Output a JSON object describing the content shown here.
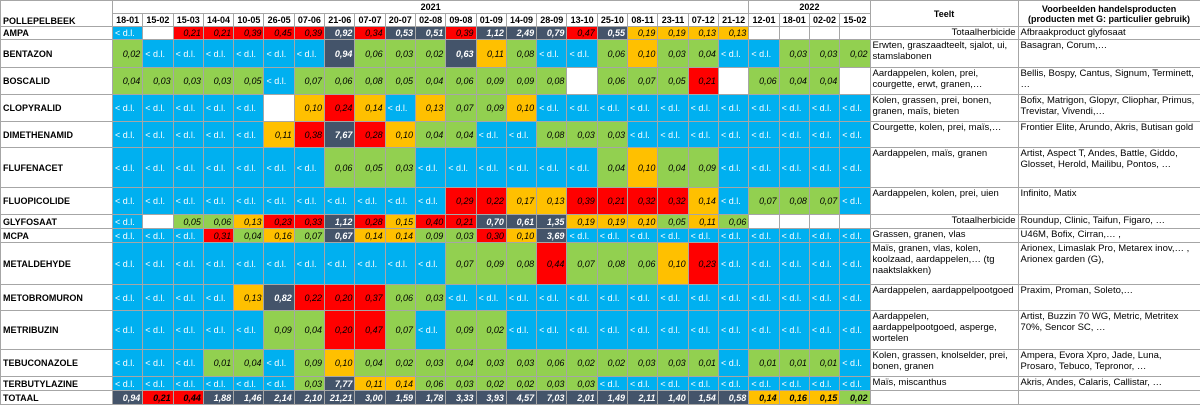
{
  "header": {
    "title": "POLLEPELBEEK",
    "years": [
      "2021",
      "2022"
    ],
    "teelt": "Teelt",
    "products": "Voorbeelden handelsproducten",
    "products_note": "(producten met G: particulier gebruik)"
  },
  "dates": [
    "18-01",
    "15-02",
    "15-03",
    "14-04",
    "10-05",
    "26-05",
    "07-06",
    "21-06",
    "07-07",
    "20-07",
    "02-08",
    "09-08",
    "01-09",
    "14-09",
    "28-09",
    "13-10",
    "25-10",
    "08-11",
    "23-11",
    "07-12",
    "21-12",
    "12-01",
    "18-01",
    "02-02",
    "15-02"
  ],
  "rows": [
    {
      "name": "AMPA",
      "cells": [
        "< d.l.",
        null,
        "0,21",
        "0,21",
        "0,39",
        "0,45",
        "0,39",
        "0,92",
        "0,34",
        "0,53",
        "0,51",
        "0,39",
        "1,12",
        "2,49",
        "0,79",
        "0,47",
        "0,55",
        "0,19",
        "0,19",
        "0,13",
        "0,13",
        null,
        null,
        null,
        null
      ],
      "teelt": "Totaalherbicide",
      "products": "Afbraakproduct glyfosaat"
    },
    {
      "name": "BENTAZON",
      "cells": [
        "0,02",
        "< d.l.",
        "< d.l.",
        "< d.l.",
        "< d.l.",
        "< d.l.",
        "< d.l.",
        "0,94",
        "0,06",
        "0,03",
        "0,02",
        "0,63",
        "0,11",
        "0,08",
        "< d.l.",
        "< d.l.",
        "0,06",
        "0,10",
        "0,03",
        "0,04",
        "< d.l.",
        "< d.l.",
        "0,03",
        "0,03",
        "0,02"
      ],
      "teelt": "Erwten, graszaadteelt, sjalot, ui, stamslabonen",
      "products": "Basagran, Corum,…"
    },
    {
      "name": "BOSCALID",
      "cells": [
        "0,04",
        "0,03",
        "0,03",
        "0,03",
        "0,05",
        "< d.l.",
        "0,07",
        "0,06",
        "0,08",
        "0,05",
        "0,04",
        "0,06",
        "0,09",
        "0,09",
        "0,08",
        null,
        "0,06",
        "0,07",
        "0,05",
        "0,21",
        null,
        "0,06",
        "0,04",
        "0,04",
        null
      ],
      "teelt": "Aardappelen, kolen, prei, courgette, erwt, granen,…",
      "products": "Bellis, Bospy, Cantus, Signum, Terminett, …"
    },
    {
      "name": "CLOPYRALID",
      "cells": [
        "< d.l.",
        "< d.l.",
        "< d.l.",
        "< d.l.",
        "< d.l.",
        null,
        "0,10",
        "0,24",
        "0,14",
        "< d.l.",
        "0,13",
        "0,07",
        "0,09",
        "0,10",
        "< d.l.",
        "< d.l.",
        "< d.l.",
        "< d.l.",
        "< d.l.",
        "< d.l.",
        "< d.l.",
        "< d.l.",
        "< d.l.",
        "< d.l.",
        "< d.l."
      ],
      "teelt": "Kolen, grassen, prei, bonen, granen, maïs, bieten",
      "products": "Bofix, Matrigon, Glopyr, Cliophar, Primus, Trevistar, Vivendi,…"
    },
    {
      "name": "DIMETHENAMID",
      "cells": [
        "< d.l.",
        "< d.l.",
        "< d.l.",
        "< d.l.",
        "< d.l.",
        "0,11",
        "0,38",
        "7,67",
        "0,28",
        "0,10",
        "0,04",
        "0,04",
        "< d.l.",
        "< d.l.",
        "0,08",
        "0,03",
        "0,03",
        "< d.l.",
        "< d.l.",
        "< d.l.",
        "< d.l.",
        "< d.l.",
        "< d.l.",
        "< d.l.",
        "< d.l."
      ],
      "teelt": "Courgette, kolen, prei, maïs,…",
      "products": "Frontier Elite, Arundo, Akris, Butisan gold"
    },
    {
      "name": "FLUFENACET",
      "cells": [
        "< d.l.",
        "< d.l.",
        "< d.l.",
        "< d.l.",
        "< d.l.",
        "< d.l.",
        "< d.l.",
        "0,06",
        "0,05",
        "0,03",
        "< d.l.",
        "< d.l.",
        "< d.l.",
        "< d.l.",
        "< d.l.",
        "< d.l.",
        "0,04",
        "0,10",
        "0,04",
        "0,09",
        "< d.l.",
        "< d.l.",
        "< d.l.",
        "< d.l.",
        "< d.l."
      ],
      "teelt": "Aardappelen, maïs, granen",
      "products": "Artist, Aspect T, Andes, Battle, Giddo, Glosset, Herold, Mailibu, Pontos, …"
    },
    {
      "name": "FLUOPICOLIDE",
      "cells": [
        "< d.l.",
        "< d.l.",
        "< d.l.",
        "< d.l.",
        "< d.l.",
        "< d.l.",
        "< d.l.",
        "< d.l.",
        "< d.l.",
        "< d.l.",
        "< d.l.",
        "0,29",
        "0,22",
        "0,17",
        "0,13",
        "0,39",
        "0,21",
        "0,32",
        "0,32",
        "0,14",
        "< d.l.",
        "0,07",
        "0,08",
        "0,07",
        "< d.l."
      ],
      "teelt": "Aardappelen, kolen, prei, uien",
      "products": "Infinito, Matix"
    },
    {
      "name": "GLYFOSAAT",
      "cells": [
        "< d.l.",
        null,
        "0,05",
        "0,06",
        "0,13",
        "0,23",
        "0,33",
        "1,12",
        "0,28",
        "0,15",
        "0,40",
        "0,21",
        "0,70",
        "0,61",
        "1,35",
        "0,19",
        "0,19",
        "0,10",
        "0,05",
        "0,11",
        "0,06",
        null,
        null,
        null,
        null
      ],
      "teelt": "Totaalherbicide",
      "products": "Roundup, Clinic, Taifun, Figaro, …"
    },
    {
      "name": "MCPA",
      "cells": [
        "< d.l.",
        "< d.l.",
        "< d.l.",
        "0,31",
        "0,04",
        "0,16",
        "0,07",
        "0,67",
        "0,14",
        "0,14",
        "0,09",
        "0,03",
        "0,30",
        "0,10",
        "3,69",
        "< d.l.",
        "< d.l.",
        "< d.l.",
        "< d.l.",
        "< d.l.",
        "< d.l.",
        "< d.l.",
        "< d.l.",
        "< d.l.",
        "< d.l."
      ],
      "teelt": "Grassen, granen, vlas",
      "products": "U46M, Bofix, Cirran,… ,"
    },
    {
      "name": "METALDEHYDE",
      "cells": [
        "< d.l.",
        "< d.l.",
        "< d.l.",
        "< d.l.",
        "< d.l.",
        "< d.l.",
        "< d.l.",
        "< d.l.",
        "< d.l.",
        "< d.l.",
        "< d.l.",
        "0,07",
        "0,09",
        "0,08",
        "0,44",
        "0,07",
        "0,08",
        "0,06",
        "0,10",
        "0,23",
        "< d.l.",
        "< d.l.",
        "< d.l.",
        "< d.l.",
        "< d.l."
      ],
      "teelt": "Maïs, granen, vlas, kolen, koolzaad, aardappelen,… (tg naaktslakken)",
      "products": "Arionex, Limaslak Pro, Metarex inov,… , Arionex garden (G),"
    },
    {
      "name": "METOBROMURON",
      "cells": [
        "< d.l.",
        "< d.l.",
        "< d.l.",
        "< d.l.",
        "0,13",
        "0,82",
        "0,22",
        "0,20",
        "0,37",
        "0,06",
        "0,03",
        "< d.l.",
        "< d.l.",
        "< d.l.",
        "< d.l.",
        "< d.l.",
        "< d.l.",
        "< d.l.",
        "< d.l.",
        "< d.l.",
        "< d.l.",
        "< d.l.",
        "< d.l.",
        "< d.l.",
        "< d.l."
      ],
      "teelt": "Aardappelen, aardappelpootgoed",
      "products": "Praxim, Proman, Soleto,…"
    },
    {
      "name": "METRIBUZIN",
      "cells": [
        "< d.l.",
        "< d.l.",
        "< d.l.",
        "< d.l.",
        "< d.l.",
        "0,09",
        "0,04",
        "0,20",
        "0,47",
        "0,07",
        "< d.l.",
        "0,09",
        "0,02",
        "< d.l.",
        "< d.l.",
        "< d.l.",
        "< d.l.",
        "< d.l.",
        "< d.l.",
        "< d.l.",
        "< d.l.",
        "< d.l.",
        "< d.l.",
        "< d.l.",
        "< d.l."
      ],
      "teelt": "Aardappelen, aardappelpootgoed, asperge, wortelen",
      "products": "Artist, Buzzin 70 WG, Metric, Metritex 70%, Sencor SC, …"
    },
    {
      "name": "TEBUCONAZOLE",
      "cells": [
        "< d.l.",
        "< d.l.",
        "< d.l.",
        "0,01",
        "0,04",
        "< d.l.",
        "0,09",
        "0,10",
        "0,04",
        "0,02",
        "0,03",
        "0,04",
        "0,03",
        "0,03",
        "0,06",
        "0,02",
        "0,02",
        "0,03",
        "0,03",
        "0,01",
        "< d.l.",
        "0,01",
        "0,01",
        "0,01",
        "< d.l."
      ],
      "teelt": "Kolen, grassen, knolselder, prei, bonen, granen",
      "products": "Ampera, Evora Xpro, Jade, Luna, Prosaro, Tebuco, Tepronor, …"
    },
    {
      "name": "TERBUTYLAZINE",
      "cells": [
        "< d.l.",
        "< d.l.",
        "< d.l.",
        "< d.l.",
        "< d.l.",
        "< d.l.",
        "0,03",
        "7,77",
        "0,11",
        "0,14",
        "0,06",
        "0,03",
        "0,02",
        "0,02",
        "0,03",
        "0,03",
        "< d.l.",
        "< d.l.",
        "< d.l.",
        "< d.l.",
        "< d.l.",
        "< d.l.",
        "< d.l.",
        "< d.l.",
        "< d.l."
      ],
      "teelt": "Maïs, miscanthus",
      "products": "Akris, Andes, Calaris, Callistar, …"
    },
    {
      "name": "TOTAAL",
      "cells": [
        "0,94",
        "0,21",
        "0,44",
        "1,88",
        "1,46",
        "2,14",
        "2,10",
        "21,21",
        "3,00",
        "1,59",
        "1,78",
        "3,33",
        "3,93",
        "4,57",
        "7,03",
        "2,01",
        "1,49",
        "2,11",
        "1,40",
        "1,54",
        "0,58",
        "0,14",
        "0,16",
        "0,15",
        "0,02"
      ]
    }
  ]
}
